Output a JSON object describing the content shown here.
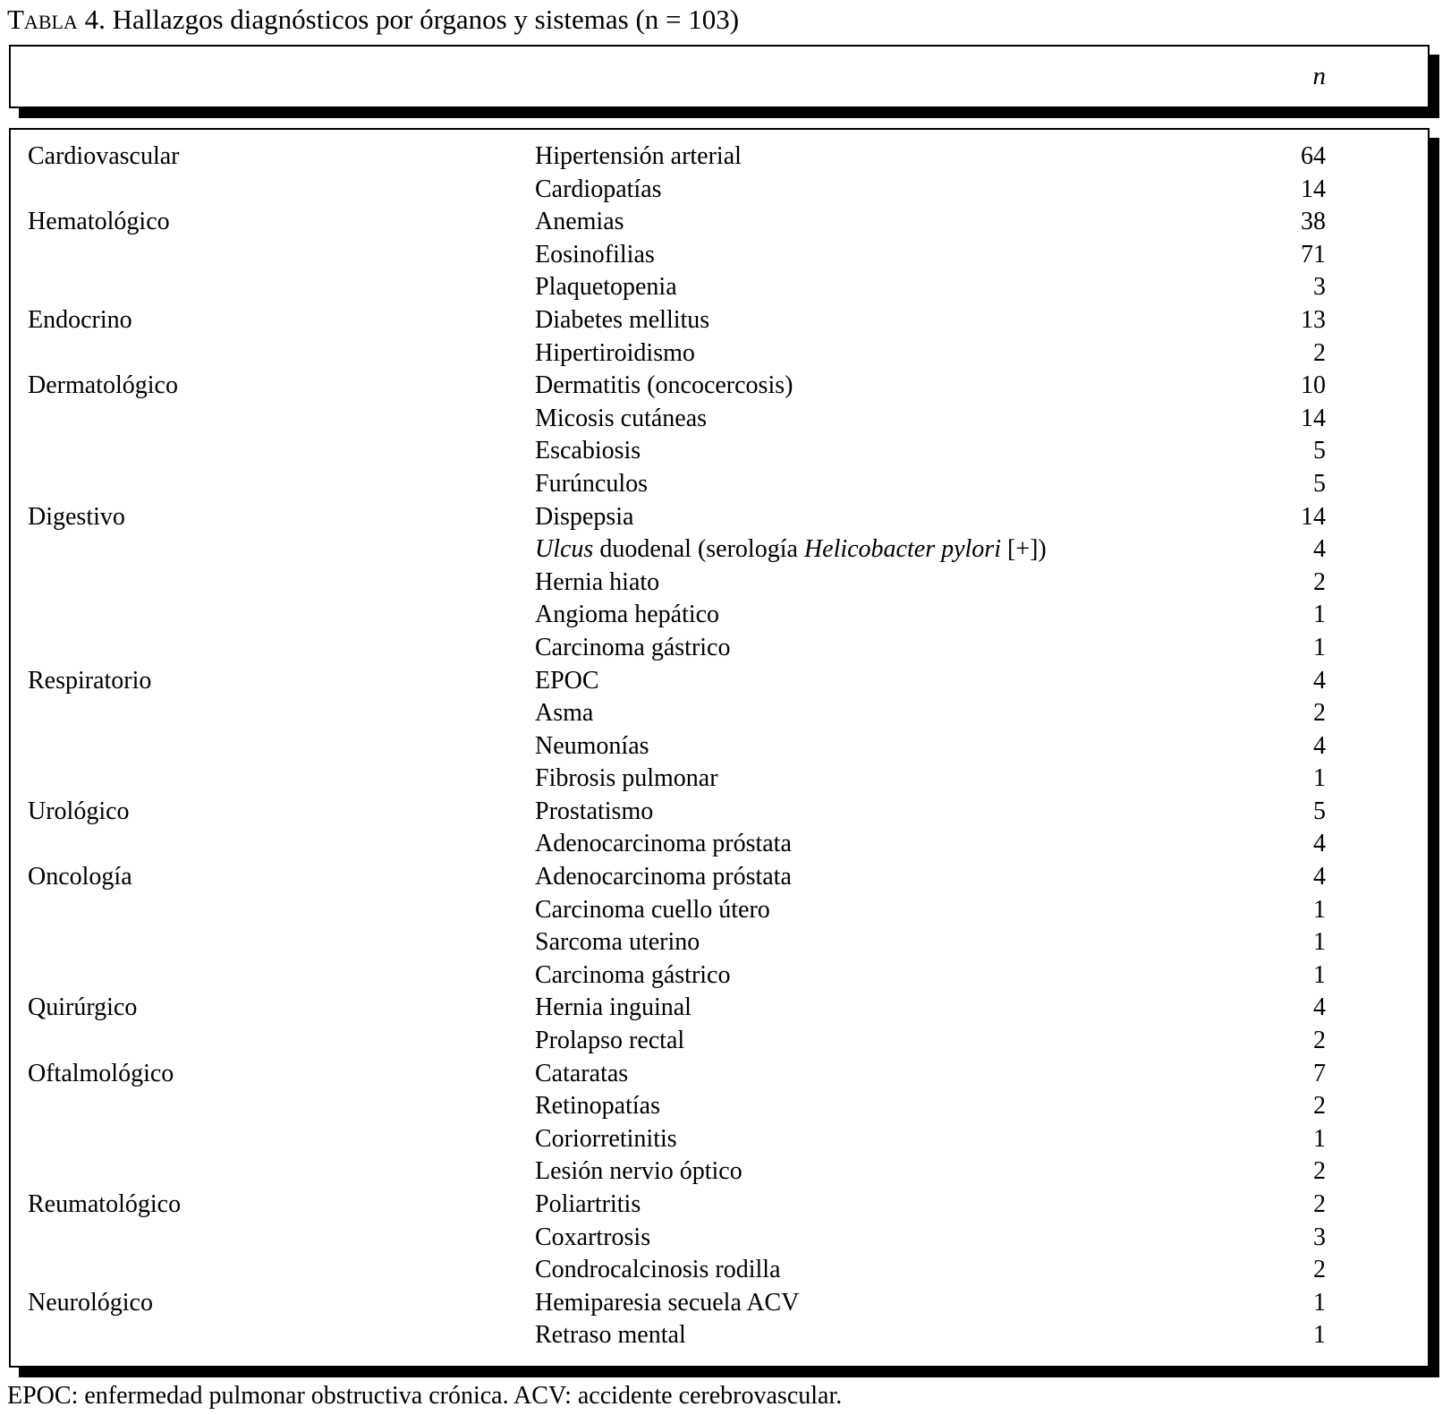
{
  "title": {
    "smallcaps": "Tabla",
    "rest": " 4. Hallazgos diagnósticos por órganos y sistemas (n = 103)"
  },
  "table": {
    "header": {
      "n_label": "n"
    },
    "rows": [
      {
        "category": "Cardiovascular",
        "diagnosis": [
          {
            "text": "Hipertensión arterial"
          }
        ],
        "n": "64"
      },
      {
        "category": "",
        "diagnosis": [
          {
            "text": "Cardiopatías"
          }
        ],
        "n": "14"
      },
      {
        "category": "Hematológico",
        "diagnosis": [
          {
            "text": "Anemias"
          }
        ],
        "n": "38"
      },
      {
        "category": "",
        "diagnosis": [
          {
            "text": "Eosinofilias"
          }
        ],
        "n": "71"
      },
      {
        "category": "",
        "diagnosis": [
          {
            "text": "Plaquetopenia"
          }
        ],
        "n": "3"
      },
      {
        "category": "Endocrino",
        "diagnosis": [
          {
            "text": "Diabetes mellitus"
          }
        ],
        "n": "13"
      },
      {
        "category": "",
        "diagnosis": [
          {
            "text": "Hipertiroidismo"
          }
        ],
        "n": "2"
      },
      {
        "category": "Dermatológico",
        "diagnosis": [
          {
            "text": "Dermatitis (oncocercosis)"
          }
        ],
        "n": "10"
      },
      {
        "category": "",
        "diagnosis": [
          {
            "text": "Micosis cutáneas"
          }
        ],
        "n": "14"
      },
      {
        "category": "",
        "diagnosis": [
          {
            "text": "Escabiosis"
          }
        ],
        "n": "5"
      },
      {
        "category": "",
        "diagnosis": [
          {
            "text": "Furúnculos"
          }
        ],
        "n": "5"
      },
      {
        "category": "Digestivo",
        "diagnosis": [
          {
            "text": "Dispepsia"
          }
        ],
        "n": "14"
      },
      {
        "category": "",
        "diagnosis": [
          {
            "text": "Ulcus",
            "italic": true
          },
          {
            "text": " duodenal (serología "
          },
          {
            "text": "Helicobacter pylori",
            "italic": true
          },
          {
            "text": " [+])"
          }
        ],
        "n": "4"
      },
      {
        "category": "",
        "diagnosis": [
          {
            "text": "Hernia hiato"
          }
        ],
        "n": "2"
      },
      {
        "category": "",
        "diagnosis": [
          {
            "text": "Angioma hepático"
          }
        ],
        "n": "1"
      },
      {
        "category": "",
        "diagnosis": [
          {
            "text": "Carcinoma gástrico"
          }
        ],
        "n": "1"
      },
      {
        "category": "Respiratorio",
        "diagnosis": [
          {
            "text": "EPOC"
          }
        ],
        "n": "4"
      },
      {
        "category": "",
        "diagnosis": [
          {
            "text": "Asma"
          }
        ],
        "n": "2"
      },
      {
        "category": "",
        "diagnosis": [
          {
            "text": "Neumonías"
          }
        ],
        "n": "4"
      },
      {
        "category": "",
        "diagnosis": [
          {
            "text": "Fibrosis pulmonar"
          }
        ],
        "n": "1"
      },
      {
        "category": "Urológico",
        "diagnosis": [
          {
            "text": "Prostatismo"
          }
        ],
        "n": "5"
      },
      {
        "category": "",
        "diagnosis": [
          {
            "text": "Adenocarcinoma próstata"
          }
        ],
        "n": "4"
      },
      {
        "category": "Oncología",
        "diagnosis": [
          {
            "text": "Adenocarcinoma próstata"
          }
        ],
        "n": "4"
      },
      {
        "category": "",
        "diagnosis": [
          {
            "text": "Carcinoma cuello útero"
          }
        ],
        "n": "1"
      },
      {
        "category": "",
        "diagnosis": [
          {
            "text": "Sarcoma uterino"
          }
        ],
        "n": "1"
      },
      {
        "category": "",
        "diagnosis": [
          {
            "text": "Carcinoma gástrico"
          }
        ],
        "n": "1"
      },
      {
        "category": "Quirúrgico",
        "diagnosis": [
          {
            "text": "Hernia inguinal"
          }
        ],
        "n": "4"
      },
      {
        "category": "",
        "diagnosis": [
          {
            "text": "Prolapso rectal"
          }
        ],
        "n": "2"
      },
      {
        "category": "Oftalmológico",
        "diagnosis": [
          {
            "text": "Cataratas"
          }
        ],
        "n": "7"
      },
      {
        "category": "",
        "diagnosis": [
          {
            "text": "Retinopatías"
          }
        ],
        "n": "2"
      },
      {
        "category": "",
        "diagnosis": [
          {
            "text": "Coriorretinitis"
          }
        ],
        "n": "1"
      },
      {
        "category": "",
        "diagnosis": [
          {
            "text": "Lesión nervio óptico"
          }
        ],
        "n": "2"
      },
      {
        "category": "Reumatológico",
        "diagnosis": [
          {
            "text": "Poliartritis"
          }
        ],
        "n": "2"
      },
      {
        "category": "",
        "diagnosis": [
          {
            "text": "Coxartrosis"
          }
        ],
        "n": "3"
      },
      {
        "category": "",
        "diagnosis": [
          {
            "text": "Condrocalcinosis rodilla"
          }
        ],
        "n": "2"
      },
      {
        "category": "Neurológico",
        "diagnosis": [
          {
            "text": "Hemiparesia secuela ACV"
          }
        ],
        "n": "1"
      },
      {
        "category": "",
        "diagnosis": [
          {
            "text": "Retraso mental"
          }
        ],
        "n": "1"
      }
    ]
  },
  "footnote": "EPOC: enfermedad pulmonar obstructiva crónica. ACV: accidente cerebrovascular."
}
